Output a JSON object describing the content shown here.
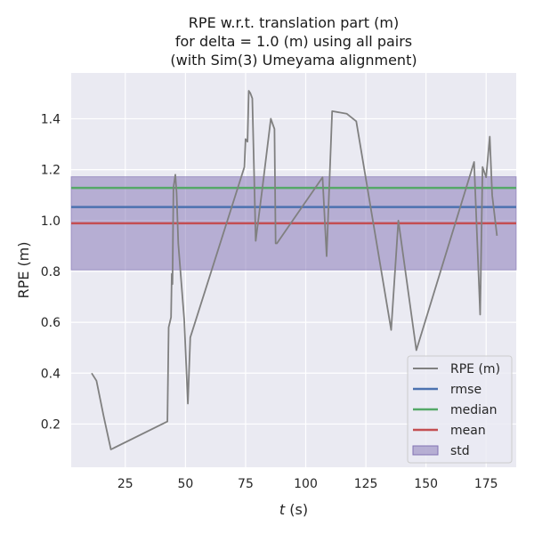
{
  "chart_data": {
    "type": "line",
    "title": [
      "RPE w.r.t. translation part (m)",
      "for delta = 1.0 (m) using all pairs",
      "(with Sim(3) Umeyama alignment)"
    ],
    "xlabel_italic": "t",
    "xlabel_rest": " (s)",
    "ylabel": "RPE (m)",
    "xlim": [
      2.5,
      187.5
    ],
    "ylim": [
      0.03,
      1.58
    ],
    "xticks": [
      25,
      50,
      75,
      100,
      125,
      150,
      175
    ],
    "yticks": [
      0.2,
      0.4,
      0.6,
      0.8,
      1.0,
      1.2,
      1.4
    ],
    "grid": true,
    "legend_position": "bottom-right",
    "series": [
      {
        "name": "RPE (m)",
        "color": "#808080",
        "x": [
          11,
          13,
          16,
          19,
          42.5,
          43,
          44,
          44.3,
          44.6,
          45,
          45.8,
          46.3,
          47,
          49.5,
          51,
          52,
          74.5,
          75,
          75.8,
          76.3,
          77,
          77.8,
          79.2,
          82,
          85.5,
          87,
          87.5,
          88,
          107,
          108.7,
          111,
          117,
          121,
          135.5,
          138.5,
          146,
          170,
          172.5,
          173.5,
          175,
          176.5,
          177.5,
          179.5
        ],
        "y": [
          0.4,
          0.37,
          0.23,
          0.1,
          0.21,
          0.58,
          0.62,
          0.79,
          0.75,
          1.13,
          1.18,
          1.11,
          0.91,
          0.61,
          0.28,
          0.54,
          1.21,
          1.32,
          1.31,
          1.51,
          1.5,
          1.48,
          0.92,
          1.13,
          1.4,
          1.36,
          0.91,
          0.91,
          1.17,
          0.86,
          1.43,
          1.42,
          1.39,
          0.57,
          1.0,
          0.49,
          1.23,
          0.63,
          1.21,
          1.17,
          1.33,
          1.1,
          0.94
        ]
      },
      {
        "name": "rmse",
        "color": "#4c72b0",
        "constant": 1.053
      },
      {
        "name": "median",
        "color": "#55a868",
        "constant": 1.128
      },
      {
        "name": "mean",
        "color": "#c44e52",
        "constant": 0.989
      }
    ],
    "std_band": {
      "name": "std",
      "color": "#8172b3",
      "lower": 0.806,
      "upper": 1.172
    }
  }
}
